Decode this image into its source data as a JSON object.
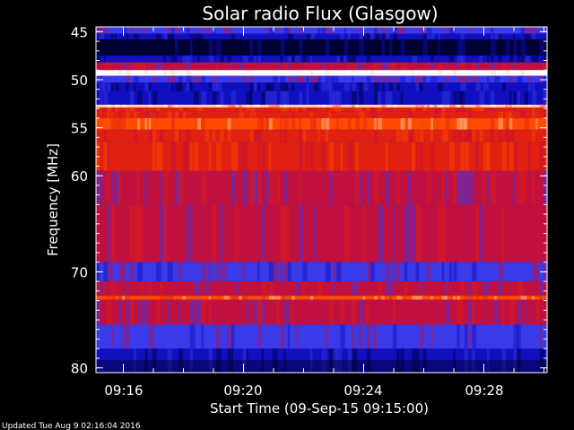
{
  "chart_data": {
    "type": "heatmap",
    "title": "Solar radio Flux (Glasgow)",
    "xlabel": "Start Time (09-Sep-15 09:15:00)",
    "ylabel": "Frequency [MHz]",
    "x_tick_labels": [
      "09:16",
      "09:20",
      "09:24",
      "09:28"
    ],
    "y_tick_labels": [
      "45",
      "50",
      "55",
      "60",
      "70",
      "80"
    ],
    "y_ticks": [
      45,
      50,
      55,
      60,
      70,
      80
    ],
    "ylim": [
      44.5,
      80.5
    ],
    "y_inverted": true,
    "colormap": [
      "#000033",
      "#1010c0",
      "#3a3ae8",
      "#c01040",
      "#e02010",
      "#ff4a00",
      "#ffd0a0",
      "#ffffff"
    ],
    "bands": [
      {
        "from": 44.5,
        "to": 45.2,
        "level": 2
      },
      {
        "from": 45.2,
        "to": 45.8,
        "level": 1
      },
      {
        "from": 45.8,
        "to": 47.5,
        "level": 0
      },
      {
        "from": 47.5,
        "to": 48.2,
        "level": 1
      },
      {
        "from": 48.2,
        "to": 49.0,
        "level": 3
      },
      {
        "from": 49.0,
        "to": 49.6,
        "level": 7
      },
      {
        "from": 49.6,
        "to": 50.3,
        "level": 2
      },
      {
        "from": 50.3,
        "to": 51.2,
        "level": 1
      },
      {
        "from": 51.2,
        "to": 52.6,
        "level": 1
      },
      {
        "from": 52.6,
        "to": 52.9,
        "level": 6
      },
      {
        "from": 52.9,
        "to": 53.3,
        "level": 4
      },
      {
        "from": 53.3,
        "to": 54.0,
        "level": 4
      },
      {
        "from": 54.0,
        "to": 55.2,
        "level": 5
      },
      {
        "from": 55.2,
        "to": 56.5,
        "level": 4
      },
      {
        "from": 56.5,
        "to": 59.5,
        "level": 4
      },
      {
        "from": 59.5,
        "to": 63.0,
        "level": 3
      },
      {
        "from": 63.0,
        "to": 69.0,
        "level": 3
      },
      {
        "from": 69.0,
        "to": 71.0,
        "level": 2
      },
      {
        "from": 71.0,
        "to": 72.5,
        "level": 3
      },
      {
        "from": 72.5,
        "to": 72.9,
        "level": 5
      },
      {
        "from": 72.9,
        "to": 75.5,
        "level": 3
      },
      {
        "from": 75.5,
        "to": 78.0,
        "level": 2
      },
      {
        "from": 78.0,
        "to": 80.5,
        "level": 1
      }
    ],
    "footer": "Updated Tue Aug  9 02:16:04 2016"
  }
}
